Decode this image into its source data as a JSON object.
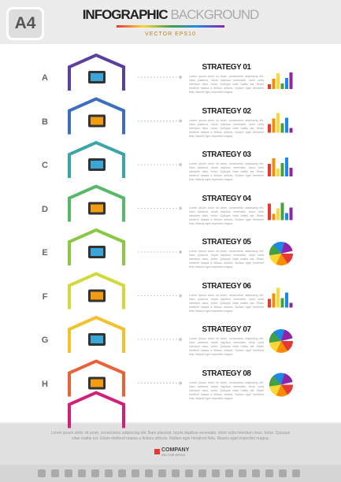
{
  "badge": "A4",
  "header": {
    "title": "INFOGRAPHIC",
    "title_accent": "BACKGROUND",
    "subtitle": "VECTOR EPS10"
  },
  "strategies": [
    {
      "letter": "A",
      "title": "STRATEGY 01",
      "text": "Lorem ipsum dolor sit amet, consectetur adipiscing elit. Nam placerat, turpis dapibus venenatis, dolor nulla interdum risus, tortor. Quisque vitae mattis est. Etiam eleifend massa a finibus ultrices. Nullam eget hendrerit felis. Mauris eget imperdiet magna."
    },
    {
      "letter": "B",
      "title": "STRATEGY 02",
      "text": "Lorem ipsum dolor sit amet, consectetur adipiscing elit. Nam placerat, turpis dapibus venenatis, dolor nulla interdum risus, tortor. Quisque vitae mattis est. Etiam eleifend massa a finibus ultrices. Nullam eget hendrerit felis. Mauris eget imperdiet magna."
    },
    {
      "letter": "C",
      "title": "STRATEGY 03",
      "text": "Lorem ipsum dolor sit amet, consectetur adipiscing elit. Nam placerat, turpis dapibus venenatis, dolor nulla interdum risus, tortor. Quisque vitae mattis est. Etiam eleifend massa a finibus ultrices. Nullam eget hendrerit felis. Mauris eget imperdiet magna."
    },
    {
      "letter": "D",
      "title": "STRATEGY 04",
      "text": "Lorem ipsum dolor sit amet, consectetur adipiscing elit. Nam placerat, turpis dapibus venenatis, dolor nulla interdum risus, tortor. Quisque vitae mattis est. Etiam eleifend massa a finibus ultrices. Nullam eget hendrerit felis. Mauris eget imperdiet magna."
    },
    {
      "letter": "E",
      "title": "STRATEGY 05",
      "text": "Lorem ipsum dolor sit amet, consectetur adipiscing elit. Nam placerat, turpis dapibus venenatis, dolor nulla interdum risus, tortor. Quisque vitae mattis est. Etiam eleifend massa a finibus ultrices. Nullam eget hendrerit felis. Mauris eget imperdiet magna."
    },
    {
      "letter": "F",
      "title": "STRATEGY 06",
      "text": "Lorem ipsum dolor sit amet, consectetur adipiscing elit. Nam placerat, turpis dapibus venenatis, dolor nulla interdum risus, tortor. Quisque vitae mattis est. Etiam eleifend massa a finibus ultrices. Nullam eget hendrerit felis. Mauris eget imperdiet magna."
    },
    {
      "letter": "G",
      "title": "STRATEGY 07",
      "text": "Lorem ipsum dolor sit amet, consectetur adipiscing elit. Nam placerat, turpis dapibus venenatis, dolor nulla interdum risus, tortor. Quisque vitae mattis est. Etiam eleifend massa a finibus ultrices. Nullam eget hendrerit felis. Mauris eget imperdiet magna."
    },
    {
      "letter": "H",
      "title": "STRATEGY 08",
      "text": "Lorem ipsum dolor sit amet, consectetur adipiscing elit. Nam placerat, turpis dapibus venenatis, dolor nulla interdum risus, tortor. Quisque vitae mattis est. Etiam eleifend massa a finibus ultrices. Nullam eget hendrerit felis. Mauris eget imperdiet magna."
    }
  ],
  "footer": {
    "text": "Lorem ipsum dolor sit amet, consectetur adipiscing elit. Nam placerat, turpis dapibus venenatis, dolor nulla interdum risus. tortor. Quisque vitae mattis est. Etiam eleifend massa a finibus ultrices. Nullam eget hendrerit felis. Mauris eget imperdiet magna.",
    "company": "COMPANY",
    "company_sub": "VECTOR EPS10"
  }
}
